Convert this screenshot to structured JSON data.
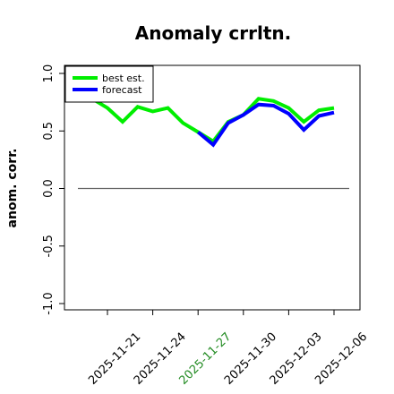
{
  "chart_data": {
    "type": "line",
    "title": "Anomaly crrltn.",
    "xlabel": "",
    "ylabel": "anom. corr.",
    "ylim": [
      -1.0,
      1.0
    ],
    "yticks": [
      "-1.0",
      "-0.5",
      "0.0",
      "0.5",
      "1.0"
    ],
    "ytick_values": [
      -1.0,
      -0.5,
      0.0,
      0.5,
      1.0
    ],
    "xticks": [
      "2025-11-21",
      "2025-11-24",
      "2025-11-27",
      "2025-11-30",
      "2025-12-03",
      "2025-12-06"
    ],
    "xtick_colors": [
      "#000000",
      "#000000",
      "#228B22",
      "#000000",
      "#000000",
      "#000000"
    ],
    "x": [
      "2025-11-19",
      "2025-11-20",
      "2025-11-21",
      "2025-11-22",
      "2025-11-23",
      "2025-11-24",
      "2025-11-25",
      "2025-11-26",
      "2025-11-27",
      "2025-11-28",
      "2025-11-29",
      "2025-11-30",
      "2025-12-01",
      "2025-12-02",
      "2025-12-03",
      "2025-12-04",
      "2025-12-05",
      "2025-12-06"
    ],
    "reference_line": 0.0,
    "legend": "top-left",
    "grid": false,
    "series": [
      {
        "name": "best est.",
        "color": "#00ee00",
        "values": [
          0.8,
          0.78,
          0.7,
          0.58,
          0.71,
          0.67,
          0.7,
          0.57,
          0.49,
          0.41,
          0.58,
          0.64,
          0.78,
          0.76,
          0.7,
          0.58,
          0.68,
          0.7
        ]
      },
      {
        "name": "forecast",
        "color": "#0000ff",
        "values": [
          null,
          null,
          null,
          null,
          null,
          null,
          null,
          null,
          0.49,
          0.38,
          0.57,
          0.64,
          0.73,
          0.72,
          0.65,
          0.51,
          0.63,
          0.66
        ]
      }
    ]
  }
}
